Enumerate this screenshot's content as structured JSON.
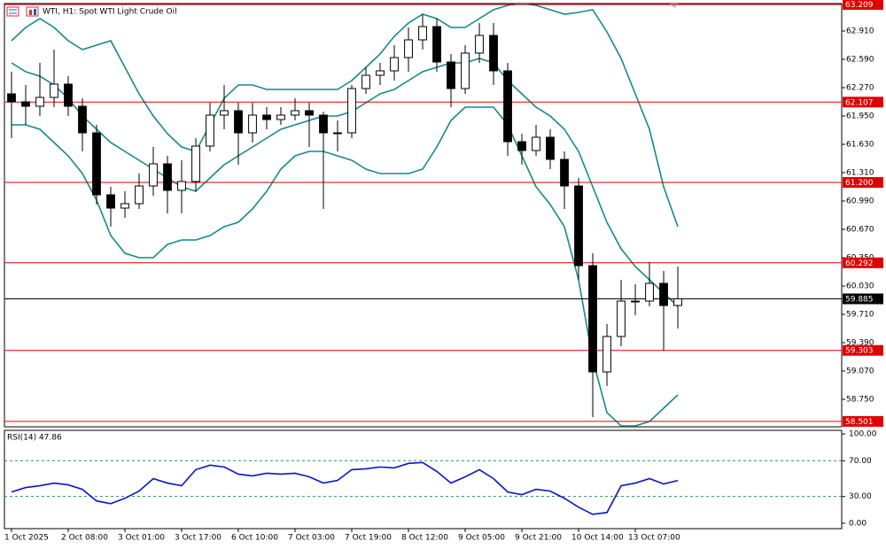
{
  "chart_data": {
    "type": "candlestick",
    "title": "WTI, H1:  Spot WTI Light Crude Oil",
    "open": [
      62.2,
      62.11,
      62.06,
      62.16,
      62.31,
      62.06,
      61.76,
      61.06,
      60.91,
      60.96,
      61.16,
      61.41,
      61.11,
      61.21,
      61.61,
      61.96,
      62.01,
      61.76,
      61.96,
      61.91,
      61.96,
      62.01,
      61.96,
      61.76,
      61.76,
      62.26,
      62.41,
      62.46,
      62.61,
      62.81,
      62.96,
      62.56,
      62.26,
      62.66,
      62.86,
      62.46,
      61.66,
      61.56,
      61.71,
      61.46,
      61.16,
      60.26,
      59.06,
      59.46,
      59.86,
      59.86,
      60.06,
      59.81
    ],
    "high": [
      62.45,
      62.3,
      62.55,
      62.7,
      62.4,
      62.15,
      61.85,
      61.15,
      61.1,
      61.3,
      61.6,
      61.5,
      61.45,
      61.7,
      62.1,
      62.3,
      62.1,
      62.1,
      62.05,
      62.05,
      62.15,
      62.1,
      62.0,
      61.9,
      62.3,
      62.5,
      62.55,
      62.75,
      62.95,
      63.1,
      63.05,
      62.65,
      62.75,
      63.0,
      63.0,
      62.55,
      61.75,
      61.85,
      61.8,
      61.55,
      61.25,
      60.4,
      59.6,
      60.1,
      60.05,
      60.3,
      60.2,
      60.25
    ],
    "low": [
      61.7,
      61.85,
      61.95,
      62.05,
      61.95,
      61.55,
      60.95,
      60.7,
      60.8,
      60.9,
      61.05,
      60.85,
      60.85,
      61.1,
      61.55,
      61.8,
      61.4,
      61.65,
      61.8,
      61.85,
      61.9,
      61.6,
      60.9,
      61.55,
      61.7,
      62.2,
      62.3,
      62.35,
      62.45,
      62.7,
      62.45,
      62.05,
      62.2,
      62.55,
      62.3,
      61.5,
      61.4,
      61.5,
      61.35,
      60.9,
      60.1,
      58.55,
      58.9,
      59.35,
      59.7,
      59.8,
      59.3,
      59.55
    ],
    "close": [
      62.11,
      62.06,
      62.16,
      62.31,
      62.06,
      61.76,
      61.06,
      60.91,
      60.96,
      61.16,
      61.41,
      61.11,
      61.21,
      61.61,
      61.96,
      62.01,
      61.76,
      61.96,
      61.91,
      61.96,
      62.01,
      61.96,
      61.76,
      61.76,
      62.26,
      62.41,
      62.46,
      62.61,
      62.81,
      62.96,
      62.56,
      62.26,
      62.66,
      62.86,
      62.46,
      61.66,
      61.56,
      61.71,
      61.46,
      61.16,
      60.26,
      59.06,
      59.46,
      59.86,
      59.86,
      60.06,
      59.81,
      59.885
    ],
    "up_color": "#ffffff",
    "down_color": "#000000",
    "bollinger": {
      "color": "#15898a",
      "upper": [
        62.8,
        62.95,
        63.05,
        62.95,
        62.8,
        62.7,
        62.75,
        62.8,
        62.5,
        62.2,
        61.95,
        61.75,
        61.6,
        61.55,
        61.85,
        62.15,
        62.3,
        62.3,
        62.25,
        62.25,
        62.25,
        62.25,
        62.25,
        62.25,
        62.35,
        62.5,
        62.65,
        62.85,
        63.0,
        63.1,
        63.05,
        62.95,
        62.95,
        63.05,
        63.15,
        63.2,
        63.22,
        63.2,
        63.15,
        63.1,
        63.12,
        63.15,
        62.9,
        62.6,
        62.2,
        61.8,
        61.15,
        60.7
      ],
      "middle": [
        62.55,
        62.45,
        62.4,
        62.3,
        62.15,
        61.95,
        61.8,
        61.65,
        61.55,
        61.45,
        61.35,
        61.25,
        61.15,
        61.1,
        61.25,
        61.4,
        61.5,
        61.6,
        61.7,
        61.8,
        61.85,
        61.9,
        61.95,
        61.95,
        62.0,
        62.1,
        62.2,
        62.25,
        62.35,
        62.45,
        62.5,
        62.55,
        62.55,
        62.6,
        62.55,
        62.35,
        62.2,
        62.05,
        61.95,
        61.8,
        61.55,
        61.15,
        60.75,
        60.45,
        60.25,
        60.1,
        59.95,
        59.8
      ],
      "lower": [
        61.85,
        61.85,
        61.8,
        61.65,
        61.5,
        61.3,
        61.0,
        60.6,
        60.4,
        60.35,
        60.35,
        60.5,
        60.55,
        60.55,
        60.6,
        60.7,
        60.75,
        60.9,
        61.1,
        61.35,
        61.5,
        61.55,
        61.55,
        61.5,
        61.45,
        61.35,
        61.3,
        61.3,
        61.3,
        61.35,
        61.6,
        61.9,
        62.05,
        62.05,
        62.05,
        61.85,
        61.5,
        61.15,
        60.95,
        60.7,
        60.1,
        59.2,
        58.6,
        58.45,
        58.45,
        58.5,
        58.65,
        58.8
      ]
    },
    "levels": [
      {
        "value": 63.209,
        "color": "#e00000"
      },
      {
        "value": 62.107,
        "color": "#e00000"
      },
      {
        "value": 61.2,
        "label": "61.200",
        "color": "#e00000"
      },
      {
        "value": 60.292,
        "color": "#e00000"
      },
      {
        "value": 59.303,
        "color": "#e00000"
      },
      {
        "value": 58.501,
        "color": "#e00000"
      },
      {
        "value": 59.885,
        "color": "#000000"
      }
    ],
    "ylim": [
      58.44,
      63.22
    ],
    "yticks": [
      {
        "value": 62.91,
        "label": "62.910"
      },
      {
        "value": 62.59,
        "label": "62.590"
      },
      {
        "value": 62.27,
        "label": "62.270"
      },
      {
        "value": 61.95,
        "label": "61.950"
      },
      {
        "value": 61.63,
        "label": "61.630"
      },
      {
        "value": 61.31,
        "label": "61.310"
      },
      {
        "value": 60.99,
        "label": "60.990"
      },
      {
        "value": 60.67,
        "label": "60.670"
      },
      {
        "value": 60.35,
        "label": "60.350"
      },
      {
        "value": 60.03,
        "label": "60.030"
      },
      {
        "value": 59.71,
        "label": "59.710"
      },
      {
        "value": 59.39,
        "label": "59.390"
      },
      {
        "value": 59.07,
        "label": "59.070"
      },
      {
        "value": 58.75,
        "label": "58.750"
      }
    ],
    "xlim": [
      -0.5,
      58.56
    ],
    "xticks": [
      {
        "value": 0,
        "label": "1 Oct 2025"
      },
      {
        "value": 4,
        "label": "2 Oct 08:00"
      },
      {
        "value": 8,
        "label": "3 Oct 01:00"
      },
      {
        "value": 12,
        "label": "3 Oct 17:00"
      },
      {
        "value": 16,
        "label": "6 Oct 10:00"
      },
      {
        "value": 20,
        "label": "7 Oct 03:00"
      },
      {
        "value": 24,
        "label": "7 Oct 19:00"
      },
      {
        "value": 28,
        "label": "8 Oct 12:00"
      },
      {
        "value": 32,
        "label": "9 Oct 05:00"
      },
      {
        "value": 36,
        "label": "9 Oct 21:00"
      },
      {
        "value": 40,
        "label": "10 Oct 14:00"
      },
      {
        "value": 44,
        "label": "13 Oct 07:00"
      }
    ],
    "rsi": {
      "title": "RSI(14) 47.86",
      "color": "#0a14c8",
      "values": [
        35,
        40,
        42,
        45,
        43,
        38,
        25,
        22,
        28,
        36,
        50,
        45,
        42,
        60,
        65,
        63,
        55,
        53,
        56,
        55,
        56,
        52,
        45,
        48,
        60,
        61,
        63,
        62,
        67,
        68,
        58,
        45,
        52,
        60,
        50,
        35,
        32,
        38,
        36,
        28,
        18,
        10,
        12,
        42,
        45,
        50,
        44,
        47.86
      ],
      "ylim": [
        -6,
        104
      ],
      "yticks": [
        {
          "value": 100,
          "label": "100.00"
        },
        {
          "value": 70,
          "label": "70.00"
        },
        {
          "value": 30,
          "label": "30.00"
        },
        {
          "value": 0,
          "label": "0.00"
        }
      ],
      "levels": [
        70,
        30
      ],
      "level_color": "#2e8b57"
    }
  }
}
